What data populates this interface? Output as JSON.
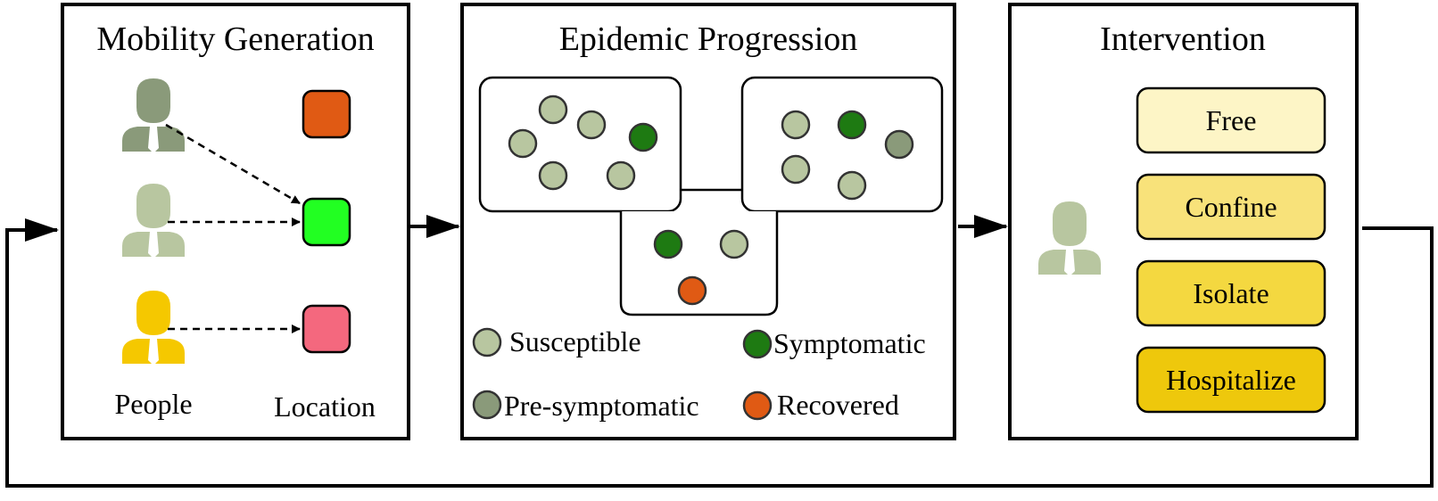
{
  "panels": {
    "mobility": {
      "title": "Mobility Generation",
      "people_label": "People",
      "location_label": "Location"
    },
    "epidemic": {
      "title": "Epidemic Progression"
    },
    "intervention": {
      "title": "Intervention"
    }
  },
  "legend": [
    {
      "label": "Susceptible",
      "color": "#b8c6a0"
    },
    {
      "label": "Symptomatic",
      "color": "#1e7a12"
    },
    {
      "label": "Pre-symptomatic",
      "color": "#8a9a7a"
    },
    {
      "label": "Recovered",
      "color": "#e05a14"
    }
  ],
  "people": [
    {
      "icon": "person-icon",
      "color": "#8a9a7a"
    },
    {
      "icon": "person-icon",
      "color": "#b8c6a0"
    },
    {
      "icon": "person-icon",
      "color": "#f5c800"
    }
  ],
  "locations": [
    {
      "icon": "location-square-icon",
      "color": "#e05a14"
    },
    {
      "icon": "location-square-icon",
      "color": "#22ff22"
    },
    {
      "icon": "location-square-icon",
      "color": "#f4687e"
    }
  ],
  "interventions": [
    {
      "label": "Free",
      "color": "#fdf5c6"
    },
    {
      "label": "Confine",
      "color": "#f8e27a"
    },
    {
      "label": "Isolate",
      "color": "#f4d840"
    },
    {
      "label": "Hospitalize",
      "color": "#eec80c"
    }
  ],
  "intervention_person_color": "#b8c6a0"
}
